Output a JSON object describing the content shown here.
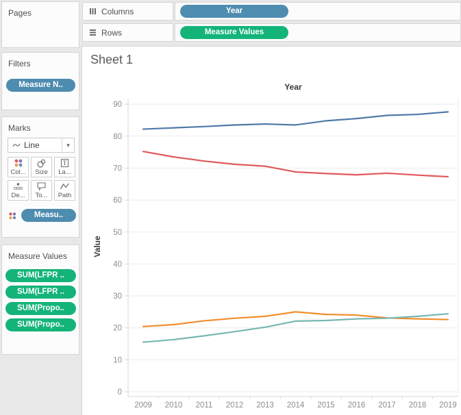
{
  "shelves": {
    "columns": {
      "label": "Columns",
      "pill": "Year"
    },
    "rows": {
      "label": "Rows",
      "pill": "Measure Values"
    }
  },
  "sidebar": {
    "pages": {
      "title": "Pages"
    },
    "filters": {
      "title": "Filters",
      "pill": "Measure N.."
    },
    "marks": {
      "title": "Marks",
      "mark_type": "Line",
      "buttons": [
        {
          "label": "Col..."
        },
        {
          "label": "Size"
        },
        {
          "label": "La..."
        },
        {
          "label": "De..."
        },
        {
          "label": "To..."
        },
        {
          "label": "Path"
        }
      ],
      "card_pill": "Measu.."
    },
    "measure_values": {
      "title": "Measure Values",
      "pills": [
        "SUM(LFPR ..",
        "SUM(LFPR ..",
        "SUM(Propo..",
        "SUM(Propo.."
      ]
    }
  },
  "sheet": {
    "title": "Sheet 1"
  },
  "chart_data": {
    "type": "line",
    "title": "",
    "top_axis_title": "Year",
    "xlabel": "",
    "ylabel": "Value",
    "x": [
      2009,
      2010,
      2011,
      2012,
      2013,
      2014,
      2015,
      2016,
      2017,
      2018,
      2019
    ],
    "series": [
      {
        "name": "blue-line",
        "color": "#4e79a7",
        "values": [
          82.2,
          82.6,
          83.0,
          83.5,
          83.8,
          83.5,
          84.8,
          85.5,
          86.5,
          86.8,
          87.6
        ]
      },
      {
        "name": "red-line",
        "color": "#e15759",
        "values": [
          75.2,
          73.5,
          72.2,
          71.2,
          70.6,
          68.8,
          68.3,
          67.9,
          68.4,
          67.8,
          67.3
        ]
      },
      {
        "name": "orange-line",
        "color": "#f28e2b",
        "values": [
          20.4,
          21.0,
          22.2,
          23.0,
          23.6,
          25.0,
          24.2,
          24.0,
          23.1,
          22.8,
          22.6
        ]
      },
      {
        "name": "teal-line",
        "color": "#76b7b2",
        "values": [
          15.5,
          16.3,
          17.5,
          18.8,
          20.2,
          22.1,
          22.3,
          22.8,
          23.0,
          23.6,
          24.4
        ]
      }
    ],
    "ylim": [
      0,
      90
    ],
    "yticks": [
      0,
      10,
      20,
      30,
      40,
      50,
      60,
      70,
      80,
      90
    ],
    "grid": true,
    "legend": "none"
  },
  "colors": {
    "dimension_pill": "#4e8cb0",
    "measure_pill": "#14b479",
    "background": "#e8e8e8",
    "gridline": "#ebebeb"
  }
}
